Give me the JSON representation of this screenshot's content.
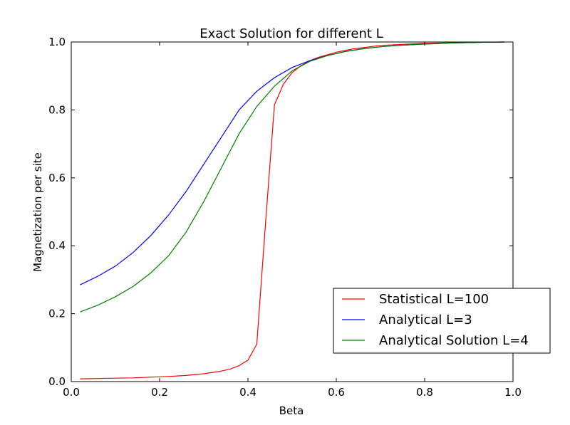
{
  "chart_data": {
    "type": "line",
    "title": "Exact Solution for different L",
    "xlabel": "Beta",
    "ylabel": "Magnetization per site",
    "xlim": [
      0.0,
      1.0
    ],
    "ylim": [
      0.0,
      1.0
    ],
    "xticks": [
      "0.0",
      "0.2",
      "0.4",
      "0.6",
      "0.8",
      "1.0"
    ],
    "yticks": [
      "0.0",
      "0.2",
      "0.4",
      "0.6",
      "0.8",
      "1.0"
    ],
    "grid": false,
    "legend_position": "lower right",
    "series": [
      {
        "name": "Statistical L=100",
        "color": "#ff0000",
        "x": [
          0.02,
          0.06,
          0.1,
          0.14,
          0.18,
          0.22,
          0.26,
          0.3,
          0.32,
          0.34,
          0.36,
          0.38,
          0.4,
          0.42,
          0.44,
          0.46,
          0.48,
          0.5,
          0.52,
          0.54,
          0.56,
          0.6,
          0.64,
          0.7,
          0.8,
          0.9,
          0.98
        ],
        "y": [
          0.008,
          0.009,
          0.01,
          0.011,
          0.013,
          0.015,
          0.018,
          0.023,
          0.027,
          0.031,
          0.037,
          0.047,
          0.063,
          0.11,
          0.47,
          0.815,
          0.875,
          0.91,
          0.93,
          0.945,
          0.955,
          0.97,
          0.98,
          0.99,
          0.996,
          0.999,
          1.0
        ]
      },
      {
        "name": "Analytical L=3",
        "color": "#0000ff",
        "x": [
          0.02,
          0.06,
          0.1,
          0.14,
          0.18,
          0.22,
          0.26,
          0.3,
          0.34,
          0.38,
          0.42,
          0.46,
          0.5,
          0.54,
          0.58,
          0.62,
          0.66,
          0.7,
          0.74,
          0.8,
          0.86,
          0.92,
          0.98
        ],
        "y": [
          0.285,
          0.31,
          0.34,
          0.38,
          0.43,
          0.49,
          0.56,
          0.64,
          0.72,
          0.8,
          0.855,
          0.895,
          0.925,
          0.945,
          0.96,
          0.972,
          0.98,
          0.986,
          0.99,
          0.994,
          0.997,
          0.999,
          1.0
        ]
      },
      {
        "name": "Analytical Solution L=4",
        "color": "#008000",
        "x": [
          0.02,
          0.06,
          0.1,
          0.14,
          0.18,
          0.22,
          0.26,
          0.3,
          0.34,
          0.38,
          0.42,
          0.46,
          0.5,
          0.54,
          0.58,
          0.62,
          0.66,
          0.7,
          0.74,
          0.8,
          0.86,
          0.92,
          0.98
        ],
        "y": [
          0.205,
          0.225,
          0.25,
          0.28,
          0.32,
          0.37,
          0.44,
          0.53,
          0.63,
          0.73,
          0.81,
          0.87,
          0.915,
          0.943,
          0.96,
          0.972,
          0.98,
          0.986,
          0.99,
          0.994,
          0.997,
          0.999,
          1.0
        ]
      }
    ]
  }
}
